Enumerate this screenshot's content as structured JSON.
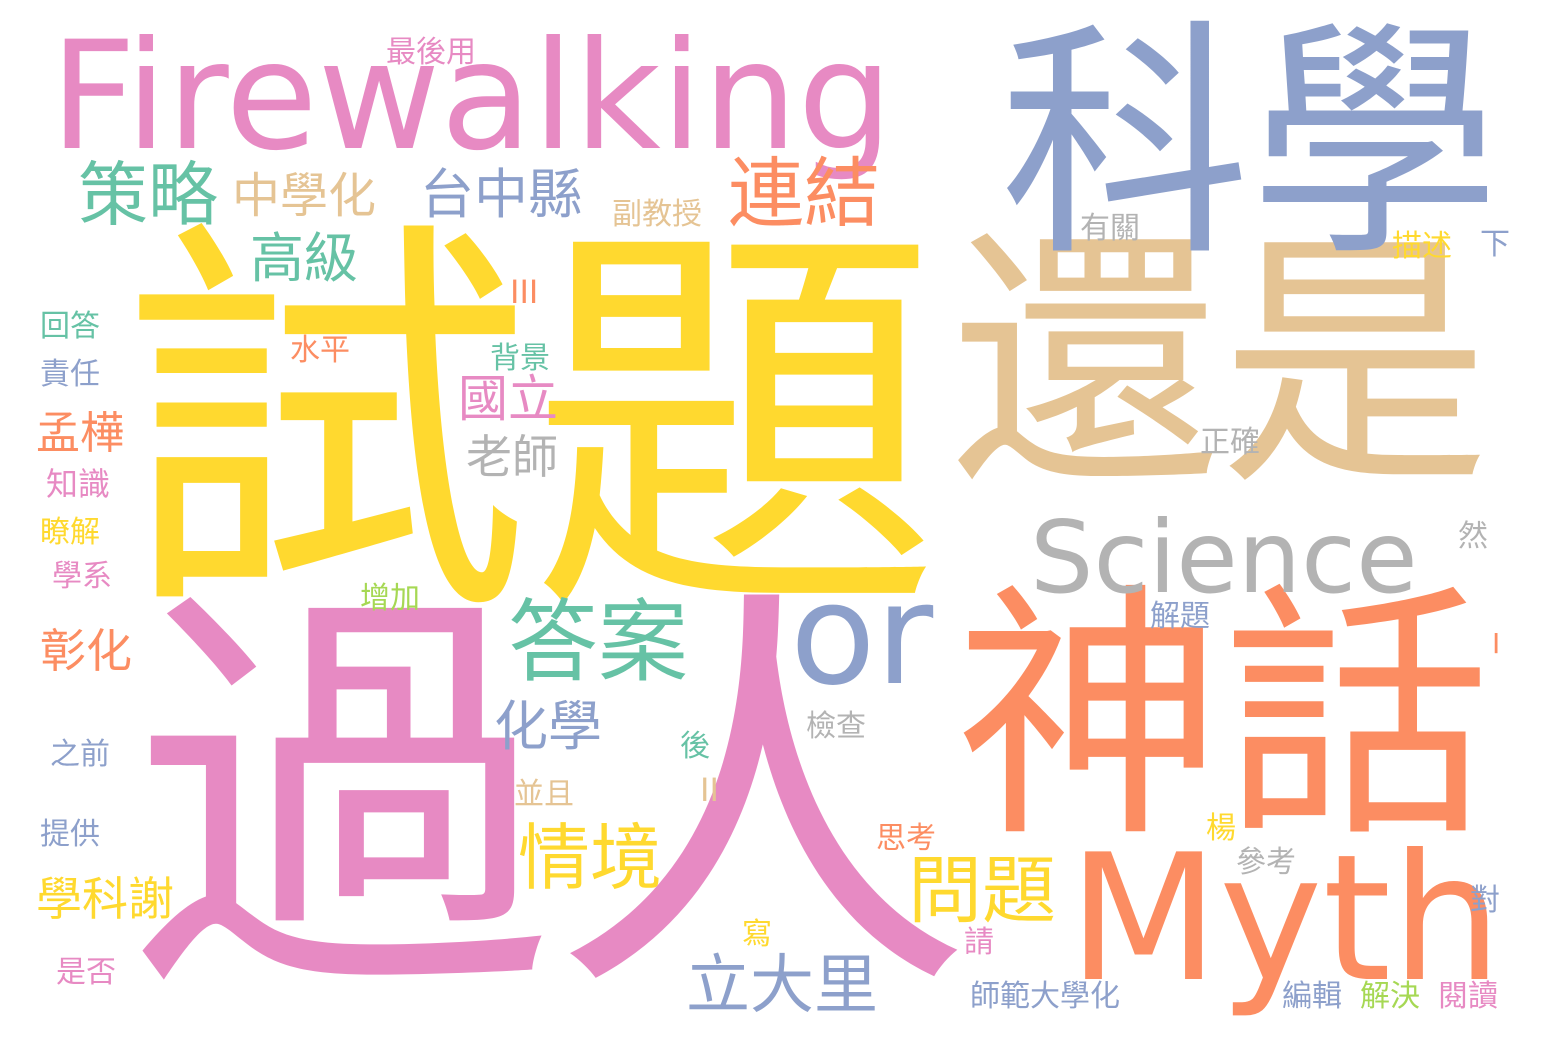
{
  "palette": {
    "yellow": "#FFD92F",
    "pink": "#E78AC3",
    "blue": "#8DA0CB",
    "orange": "#FC8D62",
    "tan": "#E5C494",
    "green": "#66C2A5",
    "gray": "#B3B3B3",
    "lime": "#A6D854"
  },
  "words": [
    {
      "text": "試題",
      "color": "yellow"
    },
    {
      "text": "過人",
      "color": "pink"
    },
    {
      "text": "還是",
      "color": "tan"
    },
    {
      "text": "科學",
      "color": "blue"
    },
    {
      "text": "神話",
      "color": "orange"
    },
    {
      "text": "Firewalking",
      "color": "pink"
    },
    {
      "text": "Myth",
      "color": "orange"
    },
    {
      "text": "Science",
      "color": "gray"
    },
    {
      "text": "or",
      "color": "blue"
    },
    {
      "text": "答案",
      "color": "green"
    },
    {
      "text": "策略",
      "color": "green"
    },
    {
      "text": "連結",
      "color": "orange"
    },
    {
      "text": "中學化",
      "color": "tan"
    },
    {
      "text": "台中縣",
      "color": "blue"
    },
    {
      "text": "高級",
      "color": "green"
    },
    {
      "text": "情境",
      "color": "yellow"
    },
    {
      "text": "問題",
      "color": "yellow"
    },
    {
      "text": "立大里",
      "color": "blue"
    },
    {
      "text": "化學",
      "color": "blue"
    },
    {
      "text": "國立",
      "color": "pink"
    },
    {
      "text": "老師",
      "color": "gray"
    },
    {
      "text": "學科謝",
      "color": "yellow"
    },
    {
      "text": "孟樺",
      "color": "orange"
    },
    {
      "text": "彰化",
      "color": "orange"
    },
    {
      "text": "副教授",
      "color": "tan"
    },
    {
      "text": "最後用",
      "color": "pink"
    },
    {
      "text": "有關",
      "color": "gray"
    },
    {
      "text": "描述",
      "color": "yellow"
    },
    {
      "text": "下",
      "color": "blue"
    },
    {
      "text": "III",
      "color": "orange"
    },
    {
      "text": "回答",
      "color": "green"
    },
    {
      "text": "水平",
      "color": "orange"
    },
    {
      "text": "背景",
      "color": "green"
    },
    {
      "text": "責任",
      "color": "blue"
    },
    {
      "text": "知識",
      "color": "pink"
    },
    {
      "text": "瞭解",
      "color": "yellow"
    },
    {
      "text": "學系",
      "color": "pink"
    },
    {
      "text": "增加",
      "color": "lime"
    },
    {
      "text": "正確",
      "color": "gray"
    },
    {
      "text": "然",
      "color": "gray"
    },
    {
      "text": "解題",
      "color": "blue"
    },
    {
      "text": "I",
      "color": "orange"
    },
    {
      "text": "檢查",
      "color": "gray"
    },
    {
      "text": "後",
      "color": "green"
    },
    {
      "text": "之前",
      "color": "blue"
    },
    {
      "text": "並且",
      "color": "tan"
    },
    {
      "text": "II",
      "color": "tan"
    },
    {
      "text": "提供",
      "color": "blue"
    },
    {
      "text": "思考",
      "color": "orange"
    },
    {
      "text": "楊",
      "color": "yellow"
    },
    {
      "text": "參考",
      "color": "gray"
    },
    {
      "text": "對",
      "color": "blue"
    },
    {
      "text": "寫",
      "color": "yellow"
    },
    {
      "text": "請",
      "color": "pink"
    },
    {
      "text": "是否",
      "color": "pink"
    },
    {
      "text": "師範大學化",
      "color": "blue"
    },
    {
      "text": "編輯",
      "color": "blue"
    },
    {
      "text": "解決",
      "color": "lime"
    },
    {
      "text": "閱讀",
      "color": "pink"
    }
  ]
}
